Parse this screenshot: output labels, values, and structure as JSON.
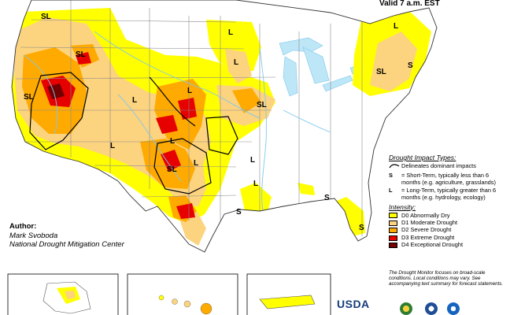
{
  "valid_text": "Valid 7 a.m. EST",
  "author": {
    "label": "Author:",
    "name": "Mark Svoboda",
    "org": "National Drought Mitigation Center"
  },
  "impact_types": {
    "heading": "Drought Impact Types:",
    "delineates": "Delineates dominant impacts",
    "s_letter": "S",
    "s_text": "= Short-Term, typically less than 6 months (e.g. agriculture, grasslands)",
    "l_letter": "L",
    "l_text": "= Long-Term, typically greater than 6 months (e.g. hydrology, ecology)"
  },
  "intensity": {
    "heading": "Intensity:",
    "levels": [
      {
        "label": "D0 Abnormally Dry",
        "color": "#ffff00"
      },
      {
        "label": "D1 Moderate Drought",
        "color": "#fcd37f"
      },
      {
        "label": "D2 Severe Drought",
        "color": "#ffaa00"
      },
      {
        "label": "D3 Extreme Drought",
        "color": "#e60000"
      },
      {
        "label": "D4 Exceptional Drought",
        "color": "#730000"
      }
    ]
  },
  "note": "The Drought Monitor focuses on broad-scale conditions. Local conditions may vary. See accompanying text summary for forecast statements.",
  "usda_logo": "USDA",
  "map_labels": {
    "sl": "SL",
    "l": "L",
    "s": "S"
  },
  "colors": {
    "water": "#bde6f6",
    "river": "#7ec8ee",
    "land": "#ffffff",
    "d0": "#ffff00",
    "d1": "#fcd37f",
    "d2": "#ffaa00",
    "d3": "#e60000",
    "d4": "#730000"
  }
}
